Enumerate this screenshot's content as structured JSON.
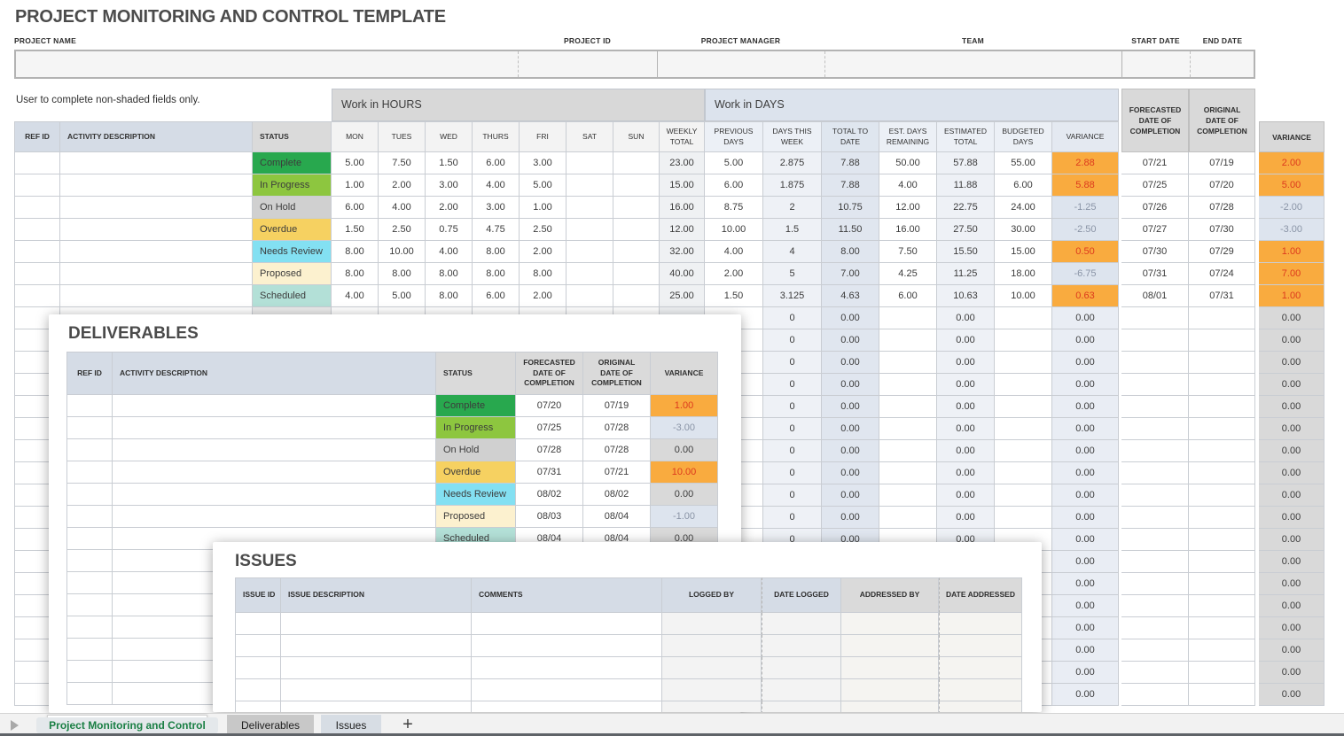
{
  "header": {
    "title": "PROJECT MONITORING AND CONTROL TEMPLATE"
  },
  "note": "User to complete non-shaded fields only.",
  "info_bar": {
    "fields": [
      {
        "label": "PROJECT NAME",
        "value": ""
      },
      {
        "label": "PROJECT ID",
        "value": ""
      },
      {
        "label": "PROJECT MANAGER",
        "value": ""
      },
      {
        "label": "TEAM",
        "value": ""
      },
      {
        "label": "START DATE",
        "value": ""
      },
      {
        "label": "END DATE",
        "value": ""
      }
    ]
  },
  "main_table": {
    "section_hours": "Work in HOURS",
    "section_days": "Work in DAYS",
    "col_headers": {
      "ref_id": "REF ID",
      "activity": "ACTIVITY DESCRIPTION",
      "status": "STATUS",
      "days_of_week": [
        "MON",
        "TUES",
        "WED",
        "THURS",
        "FRI",
        "SAT",
        "SUN"
      ],
      "weekly_total": "WEEKLY TOTAL",
      "previous_days": "PREVIOUS DAYS",
      "days_this_week": "DAYS THIS WEEK",
      "total_to_date": "TOTAL TO DATE",
      "est_days_remaining": "EST. DAYS REMAINING",
      "estimated_total": "ESTIMATED TOTAL",
      "budgeted_days": "BUDGETED DAYS",
      "variance_days": "VARIANCE",
      "forecasted_date": "FORECASTED DATE OF COMPLETION",
      "original_date": "ORIGINAL DATE OF COMPLETION",
      "variance_date": "VARIANCE"
    },
    "rows": [
      {
        "status": "Complete",
        "status_color": "#28a84e",
        "hours": [
          "5.00",
          "7.50",
          "1.50",
          "6.00",
          "3.00",
          "",
          ""
        ],
        "weekly_total": "23.00",
        "previous_days": "5.00",
        "days_this_week": "2.875",
        "total_to_date": "7.88",
        "est_days_remaining": "50.00",
        "estimated_total": "57.88",
        "budgeted_days": "55.00",
        "variance_days": "2.88",
        "variance_days_type": "pos",
        "forecasted": "07/21",
        "original": "07/19",
        "variance_date": "2.00",
        "variance_date_type": "pos"
      },
      {
        "status": "In Progress",
        "status_color": "#8dc63f",
        "hours": [
          "1.00",
          "2.00",
          "3.00",
          "4.00",
          "5.00",
          "",
          ""
        ],
        "weekly_total": "15.00",
        "previous_days": "6.00",
        "days_this_week": "1.875",
        "total_to_date": "7.88",
        "est_days_remaining": "4.00",
        "estimated_total": "11.88",
        "budgeted_days": "6.00",
        "variance_days": "5.88",
        "variance_days_type": "pos",
        "forecasted": "07/25",
        "original": "07/20",
        "variance_date": "5.00",
        "variance_date_type": "pos"
      },
      {
        "status": "On Hold",
        "status_color": "#d0d0d0",
        "hours": [
          "6.00",
          "4.00",
          "2.00",
          "3.00",
          "1.00",
          "",
          ""
        ],
        "weekly_total": "16.00",
        "previous_days": "8.75",
        "days_this_week": "2",
        "total_to_date": "10.75",
        "est_days_remaining": "12.00",
        "estimated_total": "22.75",
        "budgeted_days": "24.00",
        "variance_days": "-1.25",
        "variance_days_type": "neg",
        "forecasted": "07/26",
        "original": "07/28",
        "variance_date": "-2.00",
        "variance_date_type": "neg"
      },
      {
        "status": "Overdue",
        "status_color": "#f6d161",
        "hours": [
          "1.50",
          "2.50",
          "0.75",
          "4.75",
          "2.50",
          "",
          ""
        ],
        "weekly_total": "12.00",
        "previous_days": "10.00",
        "days_this_week": "1.5",
        "total_to_date": "11.50",
        "est_days_remaining": "16.00",
        "estimated_total": "27.50",
        "budgeted_days": "30.00",
        "variance_days": "-2.50",
        "variance_days_type": "neg",
        "forecasted": "07/27",
        "original": "07/30",
        "variance_date": "-3.00",
        "variance_date_type": "neg"
      },
      {
        "status": "Needs Review",
        "status_color": "#83e0f2",
        "hours": [
          "8.00",
          "10.00",
          "4.00",
          "8.00",
          "2.00",
          "",
          ""
        ],
        "weekly_total": "32.00",
        "previous_days": "4.00",
        "days_this_week": "4",
        "total_to_date": "8.00",
        "est_days_remaining": "7.50",
        "estimated_total": "15.50",
        "budgeted_days": "15.00",
        "variance_days": "0.50",
        "variance_days_type": "pos",
        "forecasted": "07/30",
        "original": "07/29",
        "variance_date": "1.00",
        "variance_date_type": "pos"
      },
      {
        "status": "Proposed",
        "status_color": "#fcf1cf",
        "hours": [
          "8.00",
          "8.00",
          "8.00",
          "8.00",
          "8.00",
          "",
          ""
        ],
        "weekly_total": "40.00",
        "previous_days": "2.00",
        "days_this_week": "5",
        "total_to_date": "7.00",
        "est_days_remaining": "4.25",
        "estimated_total": "11.25",
        "budgeted_days": "18.00",
        "variance_days": "-6.75",
        "variance_days_type": "neg",
        "forecasted": "07/31",
        "original": "07/24",
        "variance_date": "7.00",
        "variance_date_type": "pos"
      },
      {
        "status": "Scheduled",
        "status_color": "#b3e0d7",
        "hours": [
          "4.00",
          "5.00",
          "8.00",
          "6.00",
          "2.00",
          "",
          ""
        ],
        "weekly_total": "25.00",
        "previous_days": "1.50",
        "days_this_week": "3.125",
        "total_to_date": "4.63",
        "est_days_remaining": "6.00",
        "estimated_total": "10.63",
        "budgeted_days": "10.00",
        "variance_days": "0.63",
        "variance_days_type": "pos",
        "forecasted": "08/01",
        "original": "07/31",
        "variance_date": "1.00",
        "variance_date_type": "pos"
      }
    ],
    "empty_rows": {
      "count": 18,
      "days_this_week": "0",
      "computed_zero": "0.00"
    }
  },
  "deliverables": {
    "title": "DELIVERABLES",
    "col_headers": [
      "REF ID",
      "ACTIVITY DESCRIPTION",
      "STATUS",
      "FORECASTED DATE OF COMPLETION",
      "ORIGINAL DATE OF COMPLETION",
      "VARIANCE"
    ],
    "rows": [
      {
        "status": "Complete",
        "status_color": "#28a84e",
        "forecasted": "07/20",
        "original": "07/19",
        "variance": "1.00",
        "variance_type": "pos"
      },
      {
        "status": "In Progress",
        "status_color": "#8dc63f",
        "forecasted": "07/25",
        "original": "07/28",
        "variance": "-3.00",
        "variance_type": "neg"
      },
      {
        "status": "On Hold",
        "status_color": "#d0d0d0",
        "forecasted": "07/28",
        "original": "07/28",
        "variance": "0.00",
        "variance_type": "zero"
      },
      {
        "status": "Overdue",
        "status_color": "#f6d161",
        "forecasted": "07/31",
        "original": "07/21",
        "variance": "10.00",
        "variance_type": "pos"
      },
      {
        "status": "Needs Review",
        "status_color": "#83e0f2",
        "forecasted": "08/02",
        "original": "08/02",
        "variance": "0.00",
        "variance_type": "zero"
      },
      {
        "status": "Proposed",
        "status_color": "#fcf1cf",
        "forecasted": "08/03",
        "original": "08/04",
        "variance": "-1.00",
        "variance_type": "neg"
      },
      {
        "status": "Scheduled",
        "status_color": "#b3e0d7",
        "forecasted": "08/04",
        "original": "08/04",
        "variance": "0.00",
        "variance_type": "zero"
      }
    ],
    "empty_row_count": 7
  },
  "issues": {
    "title": "ISSUES",
    "col_headers": [
      "ISSUE ID",
      "ISSUE DESCRIPTION",
      "COMMENTS",
      "LOGGED BY",
      "DATE LOGGED",
      "ADDRESSED BY",
      "DATE ADDRESSED"
    ],
    "empty_row_count": 5
  },
  "tab_bar": {
    "active_tab": "Project Monitoring and Control",
    "tabs": [
      "Deliverables",
      "Issues"
    ],
    "add_label": "+"
  },
  "colors": {
    "accent_green": "#1a7f44",
    "variance_positive_bg": "#f9ab3f",
    "variance_positive_text": "#dd3a1e",
    "variance_negative_bg": "#dde4ee",
    "variance_zero_bg": "#d9d9d9",
    "status_complete": "#28a84e",
    "status_in_progress": "#8dc63f",
    "status_on_hold": "#d0d0d0",
    "status_overdue": "#f6d161",
    "status_needs_review": "#83e0f2",
    "status_proposed": "#fcf1cf",
    "status_scheduled": "#b3e0d7"
  }
}
